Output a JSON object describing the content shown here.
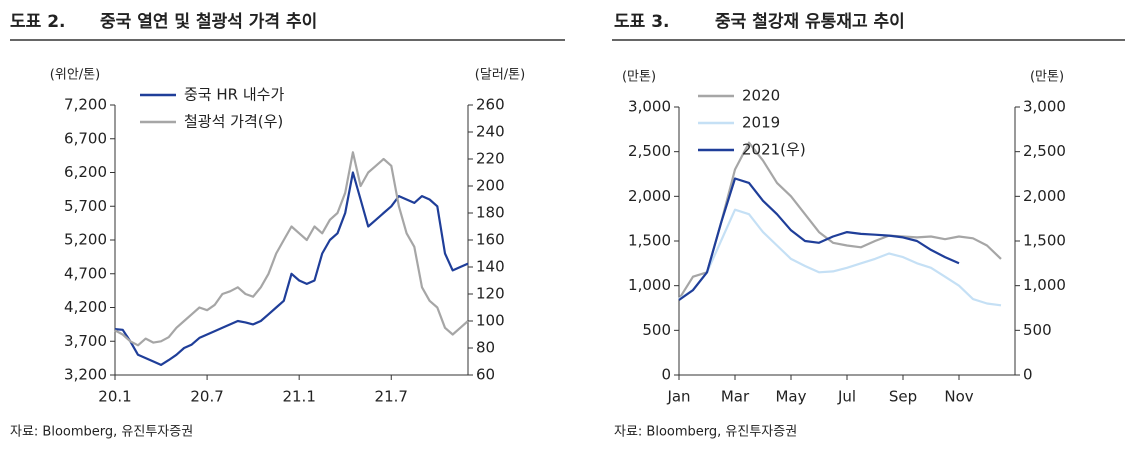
{
  "chart_data": [
    {
      "type": "line",
      "label": "도표 2.",
      "title": "중국 열연 및 철광석 가격 추이",
      "y_label": "(위안/톤)",
      "y2_label": "(달러/톤)",
      "source": "자료: Bloomberg, 유진투자증권",
      "x": [
        0,
        0.5,
        1,
        1.5,
        2,
        2.5,
        3,
        3.5,
        4,
        4.5,
        5,
        5.5,
        6,
        6.5,
        7,
        7.5,
        8,
        8.5,
        9,
        9.5,
        10,
        10.5,
        11,
        11.5,
        12,
        12.5,
        13,
        13.5,
        14,
        14.5,
        15,
        15.5,
        16,
        16.5,
        17,
        17.5,
        18,
        18.5,
        19,
        19.5,
        20,
        20.5,
        21,
        21.5,
        22,
        22.5,
        23
      ],
      "xlim": [
        0,
        23
      ],
      "xticks": [
        {
          "value": 0,
          "label": "20.1"
        },
        {
          "value": 6,
          "label": "20.7"
        },
        {
          "value": 12,
          "label": "21.1"
        },
        {
          "value": 18,
          "label": "21.7"
        }
      ],
      "ylim": [
        3200,
        7200
      ],
      "yticks": [
        {
          "value": 3200,
          "label": "3,200"
        },
        {
          "value": 3700,
          "label": "3,700"
        },
        {
          "value": 4200,
          "label": "4,200"
        },
        {
          "value": 4700,
          "label": "4,700"
        },
        {
          "value": 5200,
          "label": "5,200"
        },
        {
          "value": 5700,
          "label": "5,700"
        },
        {
          "value": 6200,
          "label": "6,200"
        },
        {
          "value": 6700,
          "label": "6,700"
        },
        {
          "value": 7200,
          "label": "7,200"
        }
      ],
      "y2lim": [
        60,
        260
      ],
      "y2ticks": [
        60,
        80,
        100,
        120,
        140,
        160,
        180,
        200,
        220,
        240,
        260
      ],
      "series": [
        {
          "name": "중국 HR 내수가",
          "color": "#1f3e99",
          "values": [
            3880,
            3870,
            3700,
            3500,
            3450,
            3400,
            3350,
            3420,
            3500,
            3600,
            3650,
            3750,
            3800,
            3850,
            3900,
            3950,
            4000,
            3980,
            3950,
            4000,
            4100,
            4200,
            4300,
            4700,
            4600,
            4550,
            4600,
            5000,
            5200,
            5300,
            5600,
            6200,
            5800,
            5400,
            5500,
            5600,
            5700,
            5850,
            5800,
            5750,
            5850,
            5800,
            5700,
            5000,
            4750,
            4800,
            4850
          ]
        },
        {
          "name": "철광석 가격(우)",
          "color": "#a6a6a6",
          "axis": "y2",
          "values": [
            93,
            90,
            85,
            82,
            87,
            84,
            85,
            88,
            95,
            100,
            105,
            110,
            108,
            112,
            120,
            122,
            125,
            120,
            118,
            125,
            135,
            150,
            160,
            170,
            165,
            160,
            170,
            165,
            175,
            180,
            195,
            225,
            200,
            210,
            215,
            220,
            215,
            185,
            165,
            155,
            125,
            115,
            110,
            95,
            90,
            95,
            100
          ]
        }
      ]
    },
    {
      "type": "line",
      "label": "도표 3.",
      "title": "중국 철강재 유통재고 추이",
      "y_label": "(만톤)",
      "y2_label": "(만톤)",
      "source": "자료: Bloomberg, 유진투자증권",
      "categories": [
        "Jan",
        null,
        null,
        null,
        "Mar",
        null,
        null,
        null,
        "May",
        null,
        null,
        null,
        "Jul",
        null,
        null,
        null,
        "Sep",
        null,
        null,
        null,
        "Nov",
        null,
        null,
        null
      ],
      "ylim": [
        0,
        3000
      ],
      "yticks": [
        0,
        500,
        {
          "value": 1000,
          "label": "1,000"
        },
        {
          "value": 1500,
          "label": "1,500"
        },
        {
          "value": 2000,
          "label": "2,000"
        },
        {
          "value": 2500,
          "label": "2,500"
        },
        {
          "value": 3000,
          "label": "3,000"
        }
      ],
      "y2lim": [
        0,
        3000
      ],
      "y2ticks": [
        0,
        500,
        {
          "value": 1000,
          "label": "1,000"
        },
        {
          "value": 1500,
          "label": "1,500"
        },
        {
          "value": 2000,
          "label": "2,000"
        },
        {
          "value": 2500,
          "label": "2,500"
        },
        {
          "value": 3000,
          "label": "3,000"
        }
      ],
      "series": [
        {
          "name": "2020",
          "color": "#a6a6a6",
          "values": [
            850,
            1100,
            1150,
            1700,
            2300,
            2600,
            2400,
            2150,
            2000,
            1800,
            1600,
            1480,
            1450,
            1430,
            1500,
            1560,
            1550,
            1540,
            1550,
            1520,
            1550,
            1530,
            1450,
            1300
          ]
        },
        {
          "name": "2019",
          "color": "#c5e0f5",
          "values": [
            850,
            950,
            1150,
            1500,
            1850,
            1800,
            1600,
            1450,
            1300,
            1220,
            1150,
            1160,
            1200,
            1250,
            1300,
            1360,
            1320,
            1250,
            1200,
            1100,
            1000,
            850,
            800,
            780
          ]
        },
        {
          "name": "2021(우)",
          "color": "#1f3e99",
          "axis": "y2",
          "values": [
            840,
            950,
            1150,
            1700,
            2200,
            2150,
            1950,
            1800,
            1620,
            1500,
            1480,
            1550,
            1600,
            1580,
            1570,
            1560,
            1540,
            1500,
            1400,
            1320,
            1250,
            null,
            null,
            null
          ]
        }
      ]
    }
  ]
}
